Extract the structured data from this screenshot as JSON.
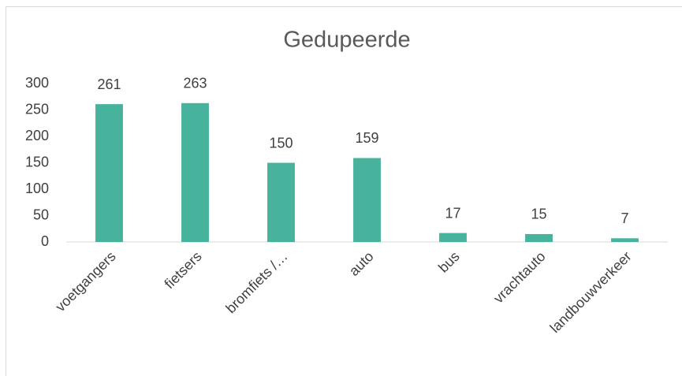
{
  "chart_data": {
    "type": "bar",
    "title": "Gedupeerde",
    "categories": [
      "voetgangers",
      "fietsers",
      "bromfiets /…",
      "auto",
      "bus",
      "vrachtauto",
      "landbouwverkeer"
    ],
    "values": [
      261,
      263,
      150,
      159,
      17,
      15,
      7
    ],
    "color": "#47b39d",
    "ylim": [
      0,
      300
    ],
    "yticks": [
      0,
      50,
      100,
      150,
      200,
      250,
      300
    ],
    "grid": false
  }
}
